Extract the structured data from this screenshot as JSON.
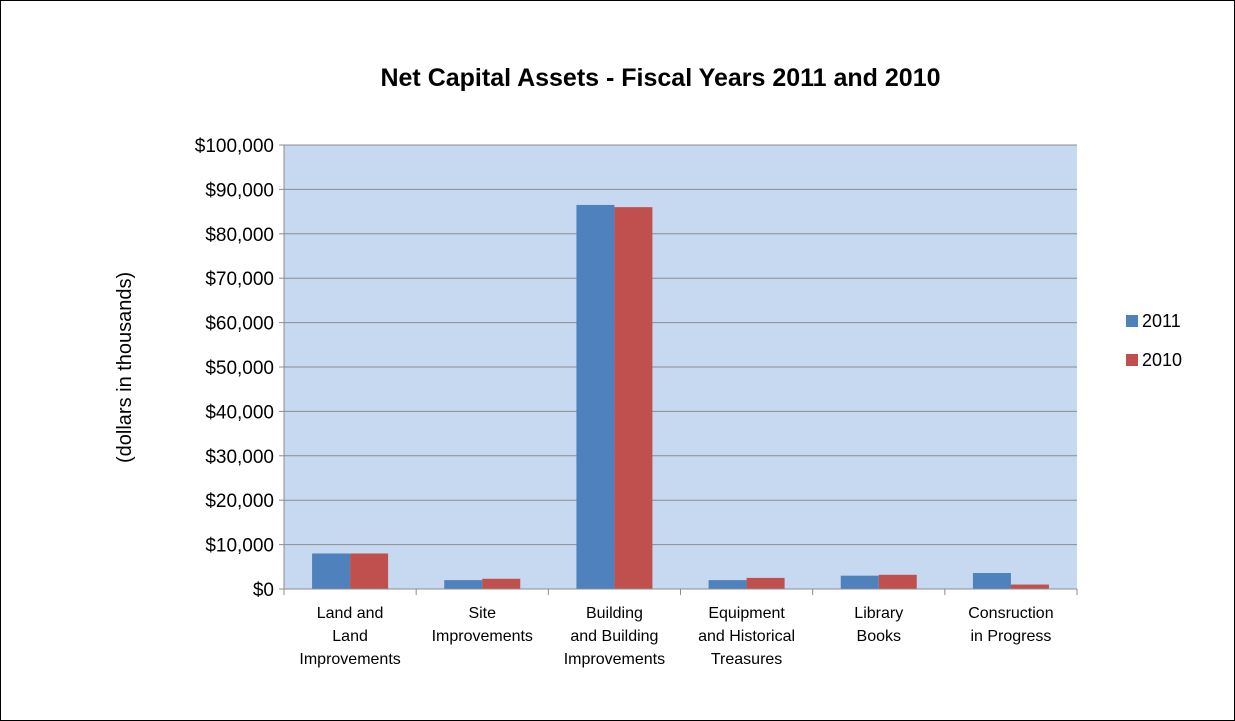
{
  "chart_data": {
    "type": "bar",
    "title": "Net Capital Assets - Fiscal Years 2011 and 2010",
    "ylabel": "(dollars in thousands)",
    "xlabel": "",
    "ylim": [
      0,
      100000
    ],
    "yticks": [
      0,
      10000,
      20000,
      30000,
      40000,
      50000,
      60000,
      70000,
      80000,
      90000,
      100000
    ],
    "ytick_labels": [
      "$0",
      "$10,000",
      "$20,000",
      "$30,000",
      "$40,000",
      "$50,000",
      "$60,000",
      "$70,000",
      "$80,000",
      "$90,000",
      "$100,000"
    ],
    "grid": true,
    "legend_position": "right",
    "categories": [
      [
        "Land and",
        "Land",
        "Improvements"
      ],
      [
        "Site",
        "Improvements"
      ],
      [
        "Building",
        "and Building",
        "Improvements"
      ],
      [
        "Equipment",
        "and Historical",
        "Treasures"
      ],
      [
        "Library",
        "Books"
      ],
      [
        "Consruction",
        "in Progress"
      ]
    ],
    "series": [
      {
        "name": "2011",
        "color": "#4F81BD",
        "values": [
          8000,
          2000,
          86500,
          2000,
          3000,
          3600
        ]
      },
      {
        "name": "2010",
        "color": "#C0504D",
        "values": [
          8000,
          2300,
          86000,
          2500,
          3200,
          1000
        ]
      }
    ],
    "plot_background": "#C6D9F1"
  }
}
